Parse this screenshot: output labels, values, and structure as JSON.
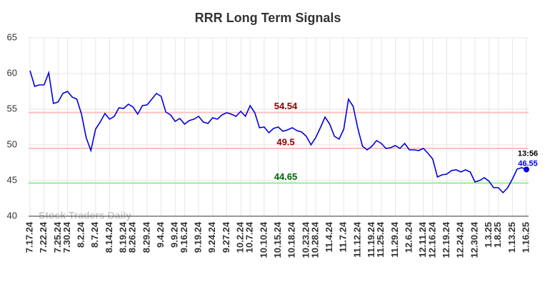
{
  "chart_data": {
    "type": "line",
    "title": "RRR Long Term Signals",
    "watermark": "Stock Traders Daily",
    "categories": [
      "7.17.24",
      null,
      null,
      "7.22.24",
      null,
      null,
      "7.25.24",
      null,
      "7.30.24",
      null,
      null,
      "8.2.24",
      null,
      null,
      "8.7.24",
      null,
      null,
      "8.14.24",
      null,
      null,
      "8.19.24",
      null,
      "8.26.24",
      null,
      null,
      "8.29.24",
      null,
      null,
      "9.4.24",
      null,
      null,
      "9.9.24",
      null,
      "9.16.24",
      null,
      null,
      "9.19.24",
      null,
      null,
      "9.24.24",
      null,
      null,
      "9.27.24",
      null,
      null,
      "10.2.24",
      null,
      "10.7.24",
      null,
      null,
      "10.10.24",
      null,
      null,
      "10.15.24",
      null,
      null,
      "10.18.24",
      null,
      null,
      "10.23.24",
      null,
      "10.28.24",
      null,
      null,
      "11.4.24",
      null,
      null,
      "11.7.24",
      null,
      null,
      "11.12.24",
      null,
      null,
      "11.19.24",
      null,
      "11.25.24",
      null,
      null,
      "11.29.24",
      null,
      null,
      "12.6.24",
      null,
      null,
      "12.11.24",
      null,
      "12.16.24",
      null,
      null,
      "12.19.24",
      null,
      null,
      "12.24.24",
      null,
      null,
      "12.30.24",
      null,
      null,
      "1.3.25",
      null,
      "1.8.25",
      null,
      null,
      "1.13.25",
      null,
      null,
      "1.16.25"
    ],
    "series": [
      {
        "color": "#0000dd",
        "values": [
          60.4,
          58.2,
          58.4,
          58.4,
          60.1,
          55.8,
          56.0,
          57.2,
          57.5,
          56.7,
          56.4,
          54.3,
          51.0,
          49.2,
          52.2,
          53.2,
          54.4,
          53.6,
          54.0,
          55.2,
          55.1,
          55.7,
          55.3,
          54.3,
          55.5,
          55.6,
          56.4,
          57.2,
          56.8,
          54.6,
          54.2,
          53.3,
          53.7,
          52.9,
          53.4,
          53.6,
          54.0,
          53.2,
          53.0,
          53.8,
          53.6,
          54.2,
          54.5,
          54.3,
          54.0,
          54.7,
          54.0,
          55.5,
          54.5,
          52.4,
          52.5,
          51.7,
          52.3,
          52.5,
          51.9,
          52.1,
          52.4,
          52.0,
          51.8,
          51.2,
          50.0,
          51.0,
          52.4,
          53.9,
          52.9,
          51.2,
          50.8,
          52.2,
          56.4,
          55.4,
          52.3,
          49.8,
          49.3,
          49.8,
          50.6,
          50.2,
          49.5,
          49.6,
          49.9,
          49.5,
          50.2,
          49.3,
          49.3,
          49.2,
          49.5,
          48.8,
          48.0,
          45.5,
          45.8,
          45.9,
          46.4,
          46.5,
          46.2,
          46.5,
          46.2,
          44.8,
          45.0,
          45.4,
          44.9,
          44.0,
          44.0,
          43.3,
          44.0,
          45.2,
          46.6,
          46.8,
          46.55
        ]
      }
    ],
    "last_time": "13:56",
    "hlines": [
      {
        "value": 54.54,
        "color": "#ffc0c0",
        "label_color": "#8b0000"
      },
      {
        "value": 49.5,
        "color": "#ffc0c0",
        "label_color": "#8b0000"
      },
      {
        "value": 44.65,
        "color": "#90ee90",
        "label_color": "#006400"
      }
    ],
    "ylim": [
      40,
      65
    ],
    "yticks": [
      40,
      45,
      50,
      55,
      60,
      65
    ],
    "grid": true
  }
}
